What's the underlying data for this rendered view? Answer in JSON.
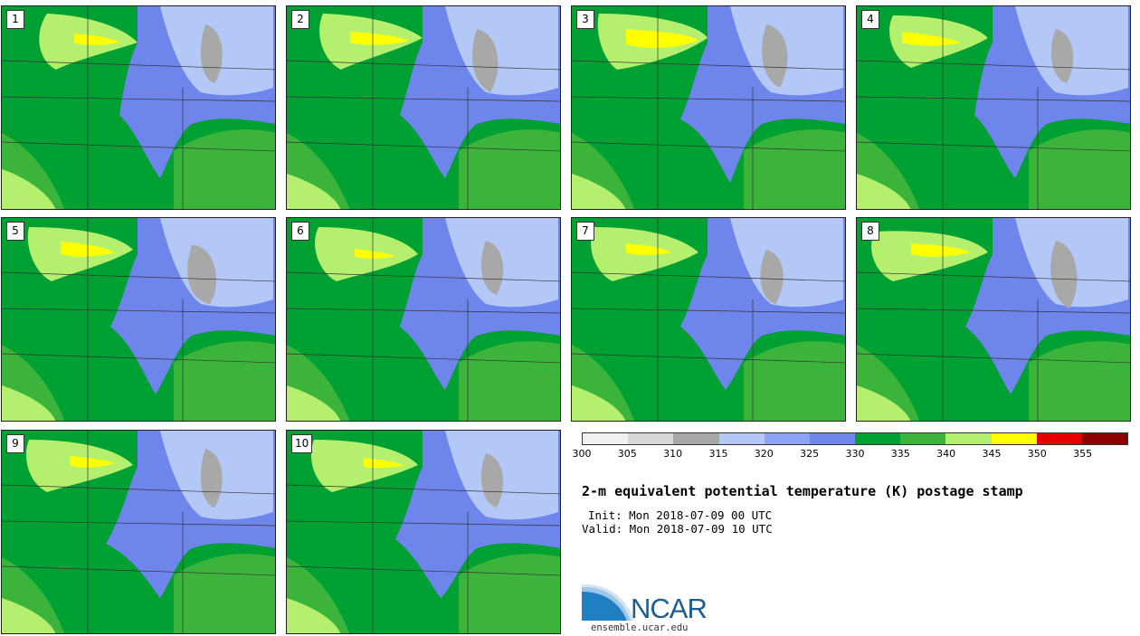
{
  "colors": {
    "bin_300_305": "#f0f0f0",
    "bin_305_310": "#d8d8d8",
    "bin_310_315": "#a8a8a8",
    "bin_315_320": "#b4c8f8",
    "bin_320_325": "#8ca4f4",
    "bin_325_330": "#6e86ec",
    "bin_330_335": "#00a032",
    "bin_335_340": "#3cb43c",
    "bin_340_345": "#b4f06e",
    "bin_345_350": "#ffff00",
    "bin_350_355": "#e60000",
    "bin_355_360": "#8c0000"
  },
  "legend": {
    "ticks": [
      "300",
      "305",
      "310",
      "315",
      "320",
      "325",
      "330",
      "335",
      "340",
      "345",
      "350",
      "355"
    ]
  },
  "panels": [
    {
      "number": "1"
    },
    {
      "number": "2"
    },
    {
      "number": "3"
    },
    {
      "number": "4"
    },
    {
      "number": "5"
    },
    {
      "number": "6"
    },
    {
      "number": "7"
    },
    {
      "number": "8"
    },
    {
      "number": "9"
    },
    {
      "number": "10"
    }
  ],
  "title": "2-m equivalent potential temperature (K) postage stamp",
  "init_text": "Init: Mon 2018-07-09 00 UTC",
  "valid_text": "Valid: Mon 2018-07-09 10 UTC",
  "logo": {
    "text": "NCAR",
    "url": "ensemble.ucar.edu"
  }
}
